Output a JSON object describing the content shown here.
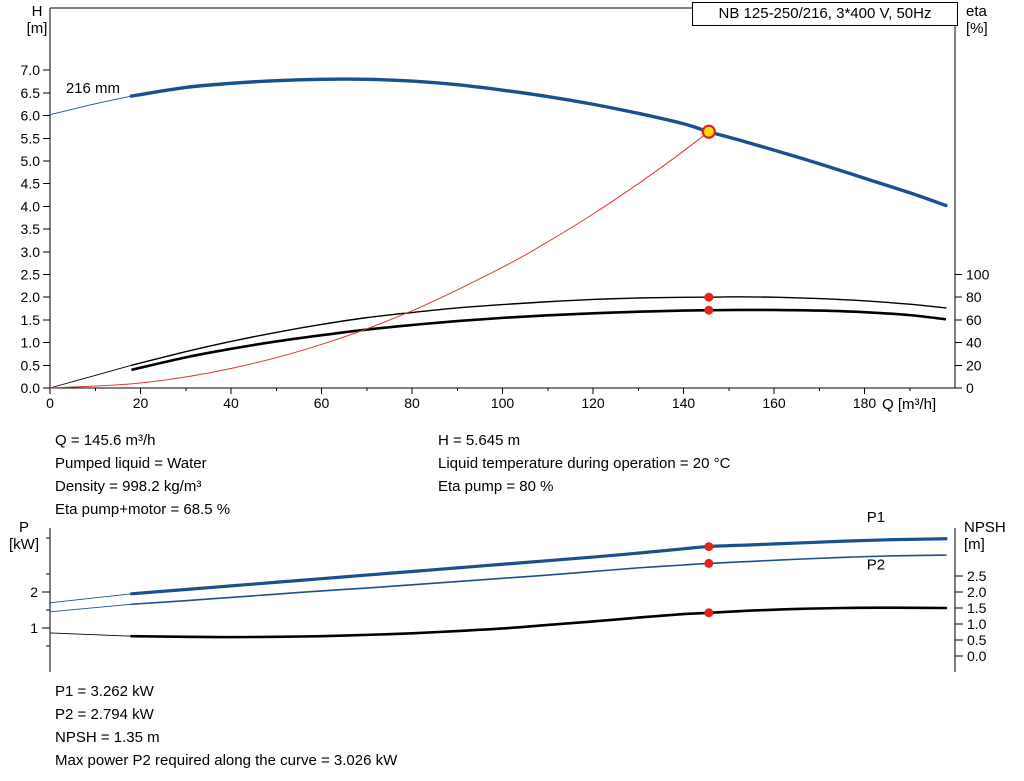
{
  "colors": {
    "curve_blue": "#1c4f8e",
    "curve_red": "#d93a2b",
    "curve_black": "#000000",
    "marker_fill": "#e0261c",
    "duty_fill": "#ffdf00",
    "duty_ring": "#e0261c"
  },
  "info_top": {
    "left": [
      "Q = 145.6 m³/h",
      "Pumped liquid = Water",
      "Density = 998.2 kg/m³",
      "Eta pump+motor = 68.5 %"
    ],
    "right": [
      "H = 5.645 m",
      "Liquid temperature during operation = 20 °C",
      "Eta pump = 80 %"
    ]
  },
  "info_bottom": [
    "P1 = 3.262 kW",
    "P2 = 2.794 kW",
    "NPSH = 1.35 m",
    "Max power P2 required along the curve = 3.026 kW"
  ],
  "chart_data": [
    {
      "id": "hq-chart",
      "type": "line",
      "title": "NB 125-250/216, 3*400 V, 50Hz",
      "x_axis": {
        "label": "Q [m³/h]",
        "min": 0,
        "max": 200,
        "major_ticks": [
          {
            "v": 0,
            "label": "0"
          },
          {
            "v": 20,
            "label": "20"
          },
          {
            "v": 40,
            "label": "40"
          },
          {
            "v": 60,
            "label": "60"
          },
          {
            "v": 80,
            "label": "80"
          },
          {
            "v": 100,
            "label": "100"
          },
          {
            "v": 120,
            "label": "120"
          },
          {
            "v": 140,
            "label": "140"
          },
          {
            "v": 160,
            "label": "160"
          },
          {
            "v": 180,
            "label": "180"
          }
        ],
        "minor_ticks": [
          10,
          30,
          50,
          70,
          90,
          110,
          130,
          150,
          170,
          190
        ]
      },
      "left_axis": {
        "label": "H",
        "unit": "[m]",
        "min": 0,
        "max": 8.37,
        "ticks": [
          {
            "v": 0,
            "label": "0.0"
          },
          {
            "v": 0.5,
            "label": "0.5"
          },
          {
            "v": 1,
            "label": "1.0"
          },
          {
            "v": 1.5,
            "label": "1.5"
          },
          {
            "v": 2,
            "label": "2.0"
          },
          {
            "v": 2.5,
            "label": "2.5"
          },
          {
            "v": 3,
            "label": "3.0"
          },
          {
            "v": 3.5,
            "label": "3.5"
          },
          {
            "v": 4,
            "label": "4.0"
          },
          {
            "v": 4.5,
            "label": "4.5"
          },
          {
            "v": 5,
            "label": "5.0"
          },
          {
            "v": 5.5,
            "label": "5.5"
          },
          {
            "v": 6,
            "label": "6.0"
          },
          {
            "v": 6.5,
            "label": "6.5"
          },
          {
            "v": 7,
            "label": "7.0"
          }
        ]
      },
      "right_axis": {
        "label": "eta",
        "unit": "[%]",
        "to_left": 0.025,
        "ticks": [
          {
            "v": 100,
            "label": "100"
          },
          {
            "v": 80,
            "label": "80"
          },
          {
            "v": 60,
            "label": "60"
          },
          {
            "v": 40,
            "label": "40"
          },
          {
            "v": 20,
            "label": "20"
          },
          {
            "v": 0,
            "label": "0"
          }
        ]
      },
      "series": [
        {
          "name": "eta-pump-curve",
          "axis": "right",
          "color": "#000000",
          "width": 1.4,
          "thin_until": 18,
          "points": [
            [
              0,
              0
            ],
            [
              9,
              10
            ],
            [
              18,
              20
            ],
            [
              30,
              32
            ],
            [
              40,
              41
            ],
            [
              50,
              49
            ],
            [
              60,
              56
            ],
            [
              70,
              62
            ],
            [
              80,
              66.5
            ],
            [
              90,
              70.5
            ],
            [
              100,
              73.5
            ],
            [
              110,
              76
            ],
            [
              120,
              78
            ],
            [
              130,
              79.3
            ],
            [
              140,
              79.9
            ],
            [
              145.6,
              80
            ],
            [
              152,
              80.3
            ],
            [
              160,
              80
            ],
            [
              170,
              78.8
            ],
            [
              180,
              76.8
            ],
            [
              190,
              73.8
            ],
            [
              198,
              70.5
            ]
          ]
        },
        {
          "name": "eta-pump-motor-curve",
          "axis": "right",
          "color": "#000000",
          "width": 2.6,
          "points": [
            [
              18,
              16
            ],
            [
              30,
              27
            ],
            [
              40,
              34.5
            ],
            [
              50,
              41
            ],
            [
              60,
              46.5
            ],
            [
              70,
              51.5
            ],
            [
              80,
              55.5
            ],
            [
              90,
              59
            ],
            [
              100,
              61.8
            ],
            [
              110,
              64
            ],
            [
              120,
              65.8
            ],
            [
              130,
              67.2
            ],
            [
              140,
              68.2
            ],
            [
              145.6,
              68.5
            ],
            [
              152,
              68.8
            ],
            [
              160,
              68.8
            ],
            [
              170,
              68.2
            ],
            [
              180,
              66.8
            ],
            [
              190,
              64.2
            ],
            [
              198,
              60.5
            ]
          ]
        },
        {
          "name": "duty-system-curve",
          "axis": "left",
          "color": "#d93a2b",
          "width": 1,
          "points": [
            [
              0,
              0
            ],
            [
              20,
              0.11
            ],
            [
              40,
              0.43
            ],
            [
              60,
              0.96
            ],
            [
              80,
              1.7
            ],
            [
              100,
              2.66
            ],
            [
              110,
              3.22
            ],
            [
              120,
              3.83
            ],
            [
              130,
              4.5
            ],
            [
              138,
              5.07
            ],
            [
              145.6,
              5.645
            ]
          ]
        },
        {
          "name": "head-curve-216mm",
          "axis": "left",
          "color": "#1c4f8e",
          "width": 3.4,
          "thin_until": 18,
          "points": [
            [
              0,
              6.02
            ],
            [
              10,
              6.26
            ],
            [
              18,
              6.43
            ],
            [
              30,
              6.62
            ],
            [
              40,
              6.71
            ],
            [
              50,
              6.77
            ],
            [
              60,
              6.8
            ],
            [
              70,
              6.8
            ],
            [
              80,
              6.76
            ],
            [
              90,
              6.68
            ],
            [
              100,
              6.56
            ],
            [
              110,
              6.42
            ],
            [
              120,
              6.25
            ],
            [
              130,
              6.05
            ],
            [
              140,
              5.82
            ],
            [
              145.6,
              5.645
            ],
            [
              152,
              5.47
            ],
            [
              160,
              5.24
            ],
            [
              170,
              4.94
            ],
            [
              180,
              4.62
            ],
            [
              190,
              4.3
            ],
            [
              198,
              4.02
            ]
          ]
        }
      ],
      "markers": [
        {
          "name": "eta-pump-point",
          "q": 145.6,
          "value": 80,
          "axis": "right",
          "style": "dot"
        },
        {
          "name": "eta-pump-motor-point",
          "q": 145.6,
          "value": 68.5,
          "axis": "right",
          "style": "dot"
        },
        {
          "name": "duty-point",
          "q": 145.6,
          "value": 5.645,
          "axis": "left",
          "style": "duty"
        }
      ],
      "annotations": [
        {
          "text": "216 mm",
          "q": 3.5,
          "value": 6.5,
          "axis": "left",
          "color": "#000000"
        }
      ]
    },
    {
      "id": "power-npsh-chart",
      "type": "line",
      "x_axis": {
        "min": 0,
        "max": 200
      },
      "left_axis": {
        "label": "P",
        "unit": "[kW]",
        "min": 0,
        "max": 3.78,
        "ticks": [
          {
            "v": 1,
            "label": "1"
          },
          {
            "v": 2,
            "label": "2"
          }
        ],
        "minor_ticks": [
          0.5,
          1.5,
          2.5,
          3.5
        ]
      },
      "right_axis": {
        "label": "NPSH",
        "unit": "[m]",
        "ticks": [
          {
            "v": 2.5,
            "label": "2.5"
          },
          {
            "v": 2.0,
            "label": "2.0"
          },
          {
            "v": 1.5,
            "label": "1.5"
          },
          {
            "v": 1.0,
            "label": "1.0"
          },
          {
            "v": 0.5,
            "label": "0.5"
          },
          {
            "v": 0.0,
            "label": "0.0"
          }
        ]
      },
      "series": [
        {
          "name": "npsh-curve",
          "axis": "right",
          "color": "#000000",
          "width": 2.6,
          "thin_until": 18,
          "points": [
            [
              0,
              0.72
            ],
            [
              18,
              0.62
            ],
            [
              30,
              0.6
            ],
            [
              40,
              0.59
            ],
            [
              50,
              0.6
            ],
            [
              60,
              0.62
            ],
            [
              70,
              0.66
            ],
            [
              80,
              0.71
            ],
            [
              90,
              0.78
            ],
            [
              100,
              0.86
            ],
            [
              110,
              0.97
            ],
            [
              120,
              1.08
            ],
            [
              130,
              1.2
            ],
            [
              140,
              1.31
            ],
            [
              145.6,
              1.35
            ],
            [
              155,
              1.42
            ],
            [
              165,
              1.47
            ],
            [
              175,
              1.5
            ],
            [
              185,
              1.51
            ],
            [
              198,
              1.5
            ]
          ]
        },
        {
          "name": "p2-curve",
          "axis": "left",
          "color": "#1c4f8e",
          "width": 1.6,
          "thin_until": 18,
          "points": [
            [
              0,
              1.45
            ],
            [
              18,
              1.66
            ],
            [
              30,
              1.76
            ],
            [
              40,
              1.85
            ],
            [
              50,
              1.94
            ],
            [
              60,
              2.03
            ],
            [
              70,
              2.11
            ],
            [
              80,
              2.2
            ],
            [
              90,
              2.29
            ],
            [
              100,
              2.38
            ],
            [
              110,
              2.47
            ],
            [
              120,
              2.57
            ],
            [
              130,
              2.67
            ],
            [
              140,
              2.75
            ],
            [
              145.6,
              2.794
            ],
            [
              155,
              2.85
            ],
            [
              165,
              2.91
            ],
            [
              175,
              2.96
            ],
            [
              185,
              3.0
            ],
            [
              198,
              3.026
            ]
          ]
        },
        {
          "name": "p1-curve",
          "axis": "left",
          "color": "#1c4f8e",
          "width": 3.2,
          "thin_until": 18,
          "points": [
            [
              0,
              1.7
            ],
            [
              18,
              1.95
            ],
            [
              30,
              2.07
            ],
            [
              40,
              2.17
            ],
            [
              50,
              2.27
            ],
            [
              60,
              2.37
            ],
            [
              70,
              2.47
            ],
            [
              80,
              2.57
            ],
            [
              90,
              2.67
            ],
            [
              100,
              2.77
            ],
            [
              110,
              2.87
            ],
            [
              120,
              2.97
            ],
            [
              130,
              3.08
            ],
            [
              140,
              3.2
            ],
            [
              145.6,
              3.262
            ],
            [
              155,
              3.31
            ],
            [
              165,
              3.36
            ],
            [
              175,
              3.41
            ],
            [
              185,
              3.45
            ],
            [
              198,
              3.48
            ]
          ]
        }
      ],
      "markers": [
        {
          "name": "p1-point",
          "q": 145.6,
          "value": 3.262,
          "axis": "left",
          "style": "dot"
        },
        {
          "name": "p2-point",
          "q": 145.6,
          "value": 2.794,
          "axis": "left",
          "style": "dot"
        },
        {
          "name": "npsh-point",
          "q": 145.6,
          "value": 1.35,
          "axis": "right",
          "style": "dot"
        }
      ],
      "annotations": [
        {
          "text": "P1",
          "q": 180.5,
          "value": 3.95,
          "axis": "left",
          "color": "#1c4f8e"
        },
        {
          "text": "P2",
          "q": 180.5,
          "value": 2.62,
          "axis": "left",
          "color": "#1c4f8e"
        }
      ]
    }
  ]
}
